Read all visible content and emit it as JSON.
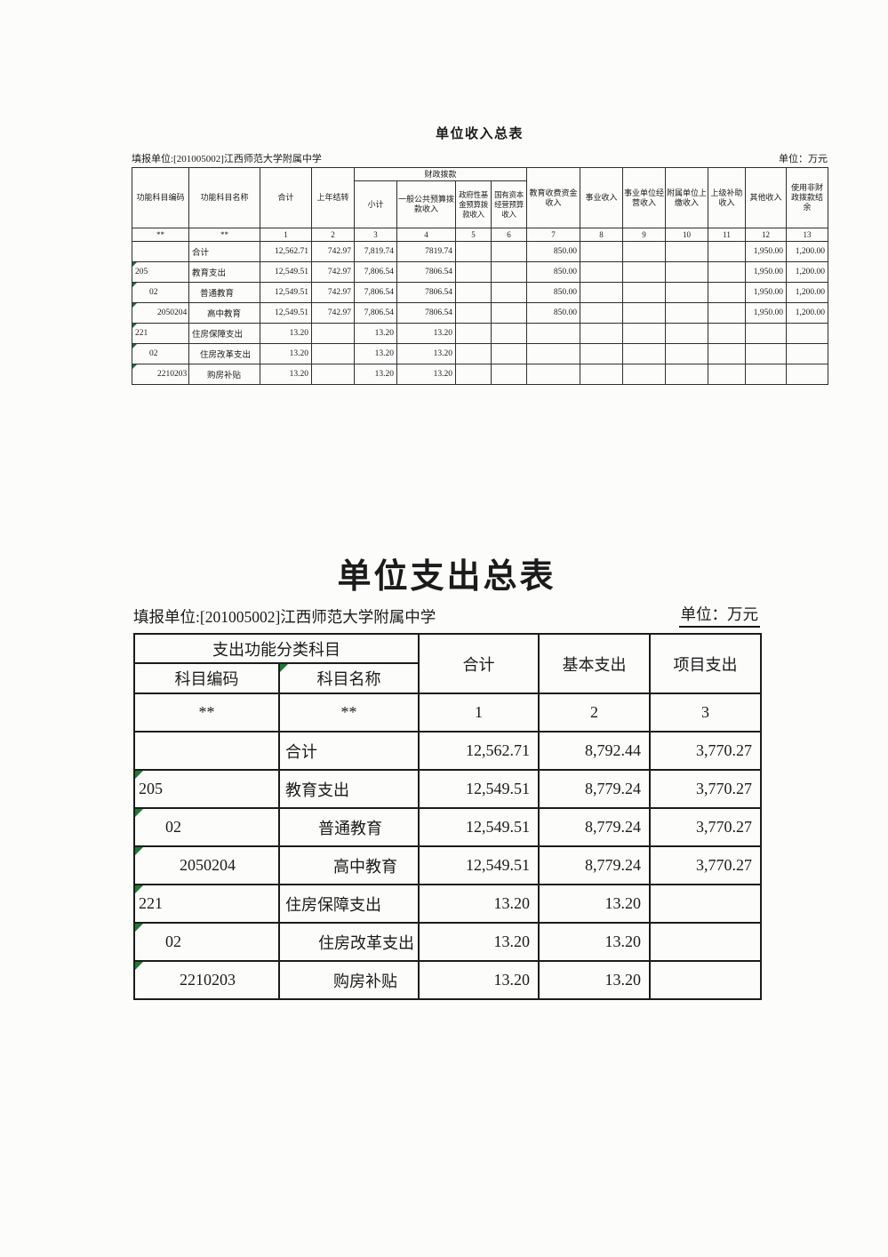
{
  "income_table": {
    "title": "单位收入总表",
    "reporting_unit": "填报单位:[201005002]江西师范大学附属中学",
    "unit_note": "单位：万元",
    "header": {
      "func_code": "功能科目编码",
      "func_name": "功能科目名称",
      "total": "合计",
      "prev_year_carryover": "上年结转",
      "fiscal_appropriation_group": "财政拨款",
      "fiscal_subtotal": "小计",
      "general_public_budget_income": "一般公共预算拨款收入",
      "gov_fund_budget_income": "政府性基金预算拨款收入",
      "state_capital_budget_income": "国有资本经营预算收入",
      "education_fee_income": "教育收费资金收入",
      "business_income": "事业收入",
      "operating_income": "事业单位经营收入",
      "affiliated_unit_income": "附属单位上缴收入",
      "superior_subsidy_income": "上级补助收入",
      "other_income": "其他收入",
      "non_fiscal_balance": "使用非财政拨款结余"
    },
    "column_numbers": [
      "**",
      "**",
      "1",
      "2",
      "3",
      "4",
      "5",
      "6",
      "7",
      "8",
      "9",
      "10",
      "11",
      "12",
      "13"
    ],
    "rows": [
      {
        "code": "",
        "name": "合计",
        "indent": 0,
        "marker": false,
        "values": [
          "12,562.71",
          "742.97",
          "7,819.74",
          "7819.74",
          "",
          "",
          "850.00",
          "",
          "",
          "",
          "",
          "1,950.00",
          "1,200.00"
        ]
      },
      {
        "code": "205",
        "name": "教育支出",
        "indent": 0,
        "marker": true,
        "values": [
          "12,549.51",
          "742.97",
          "7,806.54",
          "7806.54",
          "",
          "",
          "850.00",
          "",
          "",
          "",
          "",
          "1,950.00",
          "1,200.00"
        ]
      },
      {
        "code": "02",
        "name": "普通教育",
        "indent": 1,
        "marker": true,
        "values": [
          "12,549.51",
          "742.97",
          "7,806.54",
          "7806.54",
          "",
          "",
          "850.00",
          "",
          "",
          "",
          "",
          "1,950.00",
          "1,200.00"
        ]
      },
      {
        "code": "2050204",
        "name": "高中教育",
        "indent": 2,
        "marker": true,
        "values": [
          "12,549.51",
          "742.97",
          "7,806.54",
          "7806.54",
          "",
          "",
          "850.00",
          "",
          "",
          "",
          "",
          "1,950.00",
          "1,200.00"
        ]
      },
      {
        "code": "221",
        "name": "住房保障支出",
        "indent": 0,
        "marker": true,
        "values": [
          "13.20",
          "",
          "13.20",
          "13.20",
          "",
          "",
          "",
          "",
          "",
          "",
          "",
          "",
          ""
        ]
      },
      {
        "code": "02",
        "name": "住房改革支出",
        "indent": 1,
        "marker": true,
        "values": [
          "13.20",
          "",
          "13.20",
          "13.20",
          "",
          "",
          "",
          "",
          "",
          "",
          "",
          "",
          ""
        ]
      },
      {
        "code": "2210203",
        "name": "购房补贴",
        "indent": 2,
        "marker": true,
        "values": [
          "13.20",
          "",
          "13.20",
          "13.20",
          "",
          "",
          "",
          "",
          "",
          "",
          "",
          "",
          ""
        ]
      }
    ]
  },
  "expenditure_table": {
    "title": "单位支出总表",
    "reporting_unit": "填报单位:[201005002]江西师范大学附属中学",
    "unit_note": "单位：万元",
    "header": {
      "group": "支出功能分类科目",
      "code": "科目编码",
      "name": "科目名称",
      "total": "合计",
      "basic": "基本支出",
      "project": "项目支出"
    },
    "column_numbers": [
      "**",
      "**",
      "1",
      "2",
      "3"
    ],
    "rows": [
      {
        "code": "",
        "name": "合计",
        "indent": 0,
        "marker": false,
        "values": [
          "12,562.71",
          "8,792.44",
          "3,770.27"
        ]
      },
      {
        "code": "205",
        "name": "教育支出",
        "indent": 0,
        "marker": true,
        "values": [
          "12,549.51",
          "8,779.24",
          "3,770.27"
        ]
      },
      {
        "code": "02",
        "name": "普通教育",
        "indent": 1,
        "marker": true,
        "values": [
          "12,549.51",
          "8,779.24",
          "3,770.27"
        ]
      },
      {
        "code": "2050204",
        "name": "高中教育",
        "indent": 2,
        "marker": true,
        "values": [
          "12,549.51",
          "8,779.24",
          "3,770.27"
        ]
      },
      {
        "code": "221",
        "name": "住房保障支出",
        "indent": 0,
        "marker": true,
        "values": [
          "13.20",
          "13.20",
          ""
        ]
      },
      {
        "code": "02",
        "name": "住房改革支出",
        "indent": 1,
        "marker": true,
        "values": [
          "13.20",
          "13.20",
          ""
        ]
      },
      {
        "code": "2210203",
        "name": "购房补贴",
        "indent": 2,
        "marker": true,
        "values": [
          "13.20",
          "13.20",
          ""
        ]
      }
    ]
  },
  "colors": {
    "marker_green": "#1e7a34",
    "border_dark": "#1c1c1c",
    "text": "#1b1b1b"
  }
}
